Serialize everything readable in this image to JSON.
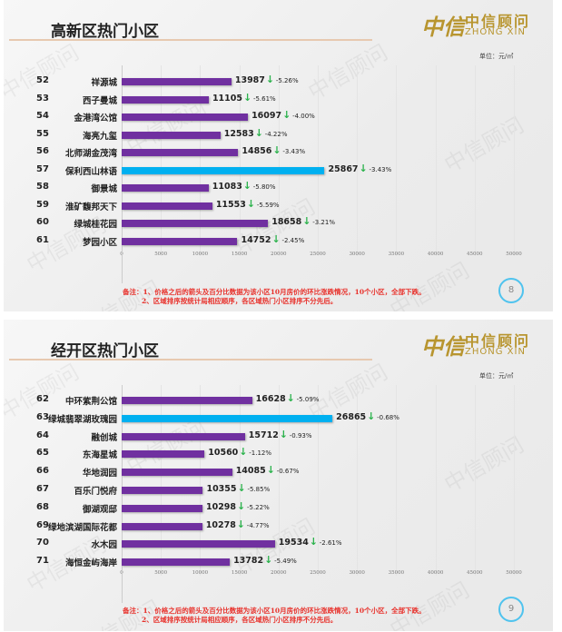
{
  "unit_label": "单位：元/㎡",
  "logo": {
    "cn": "中信顾问",
    "en": "ZHONG XIN",
    "mark": "中信"
  },
  "watermark": "中信顾问",
  "colors": {
    "bar": "#7030a0",
    "highlight": "#00b0f0",
    "arrow": "#2bb24c",
    "note": "#e8322c"
  },
  "notes": [
    "备注：1、价格之后的箭头及百分比数据为该小区10月房价的环比涨跌情况，10个小区，全部下跌。",
    "2、区域排序按统计局相应顺序，各区域热门小区排序不分先后。"
  ],
  "chart_data": [
    {
      "type": "bar",
      "orientation": "horizontal",
      "title": "高新区热门小区",
      "page": "8",
      "xlim": [
        0,
        50000
      ],
      "ticks": [
        "0",
        "5000",
        "10000",
        "15000",
        "20000",
        "25000",
        "30000",
        "35000",
        "40000",
        "45000",
        "50000"
      ],
      "ranks": [
        "52",
        "53",
        "54",
        "55",
        "56",
        "57",
        "58",
        "59",
        "60",
        "61"
      ],
      "categories": [
        "祥源城",
        "西子曼城",
        "金港湾公馆",
        "海亮九玺",
        "北师湖金茂湾",
        "保利西山林语",
        "御景城",
        "淮矿馥邦天下",
        "绿城桂花园",
        "梦园小区"
      ],
      "values": [
        13987,
        11105,
        16097,
        12583,
        14856,
        25867,
        11083,
        11553,
        18658,
        14752
      ],
      "changes": [
        "-5.26%",
        "-5.61%",
        "-4.00%",
        "-4.22%",
        "-3.43%",
        "-3.43%",
        "-5.80%",
        "-5.59%",
        "-3.21%",
        "-2.45%"
      ],
      "highlight": [
        5
      ]
    },
    {
      "type": "bar",
      "orientation": "horizontal",
      "title": "经开区热门小区",
      "page": "9",
      "xlim": [
        0,
        50000
      ],
      "ticks": [
        "0",
        "5000",
        "10000",
        "15000",
        "20000",
        "25000",
        "30000",
        "35000",
        "40000",
        "45000",
        "50000"
      ],
      "ranks": [
        "62",
        "63",
        "64",
        "65",
        "66",
        "67",
        "68",
        "69",
        "70",
        "71"
      ],
      "categories": [
        "中环紫荆公馆",
        "绿城翡翠湖玫瑰园",
        "融创城",
        "东海星城",
        "华地润园",
        "百乐门悦府",
        "御湖观邸",
        "绿地滨湖国际花都",
        "水木园",
        "海恒金屿海岸"
      ],
      "values": [
        16628,
        26865,
        15712,
        10560,
        14085,
        10355,
        10298,
        10278,
        19534,
        13782
      ],
      "changes": [
        "-5.09%",
        "-0.68%",
        "-0.93%",
        "-1.12%",
        "-0.67%",
        "-5.85%",
        "-5.22%",
        "-4.77%",
        "-2.61%",
        "-5.49%"
      ],
      "highlight": [
        1
      ]
    }
  ]
}
